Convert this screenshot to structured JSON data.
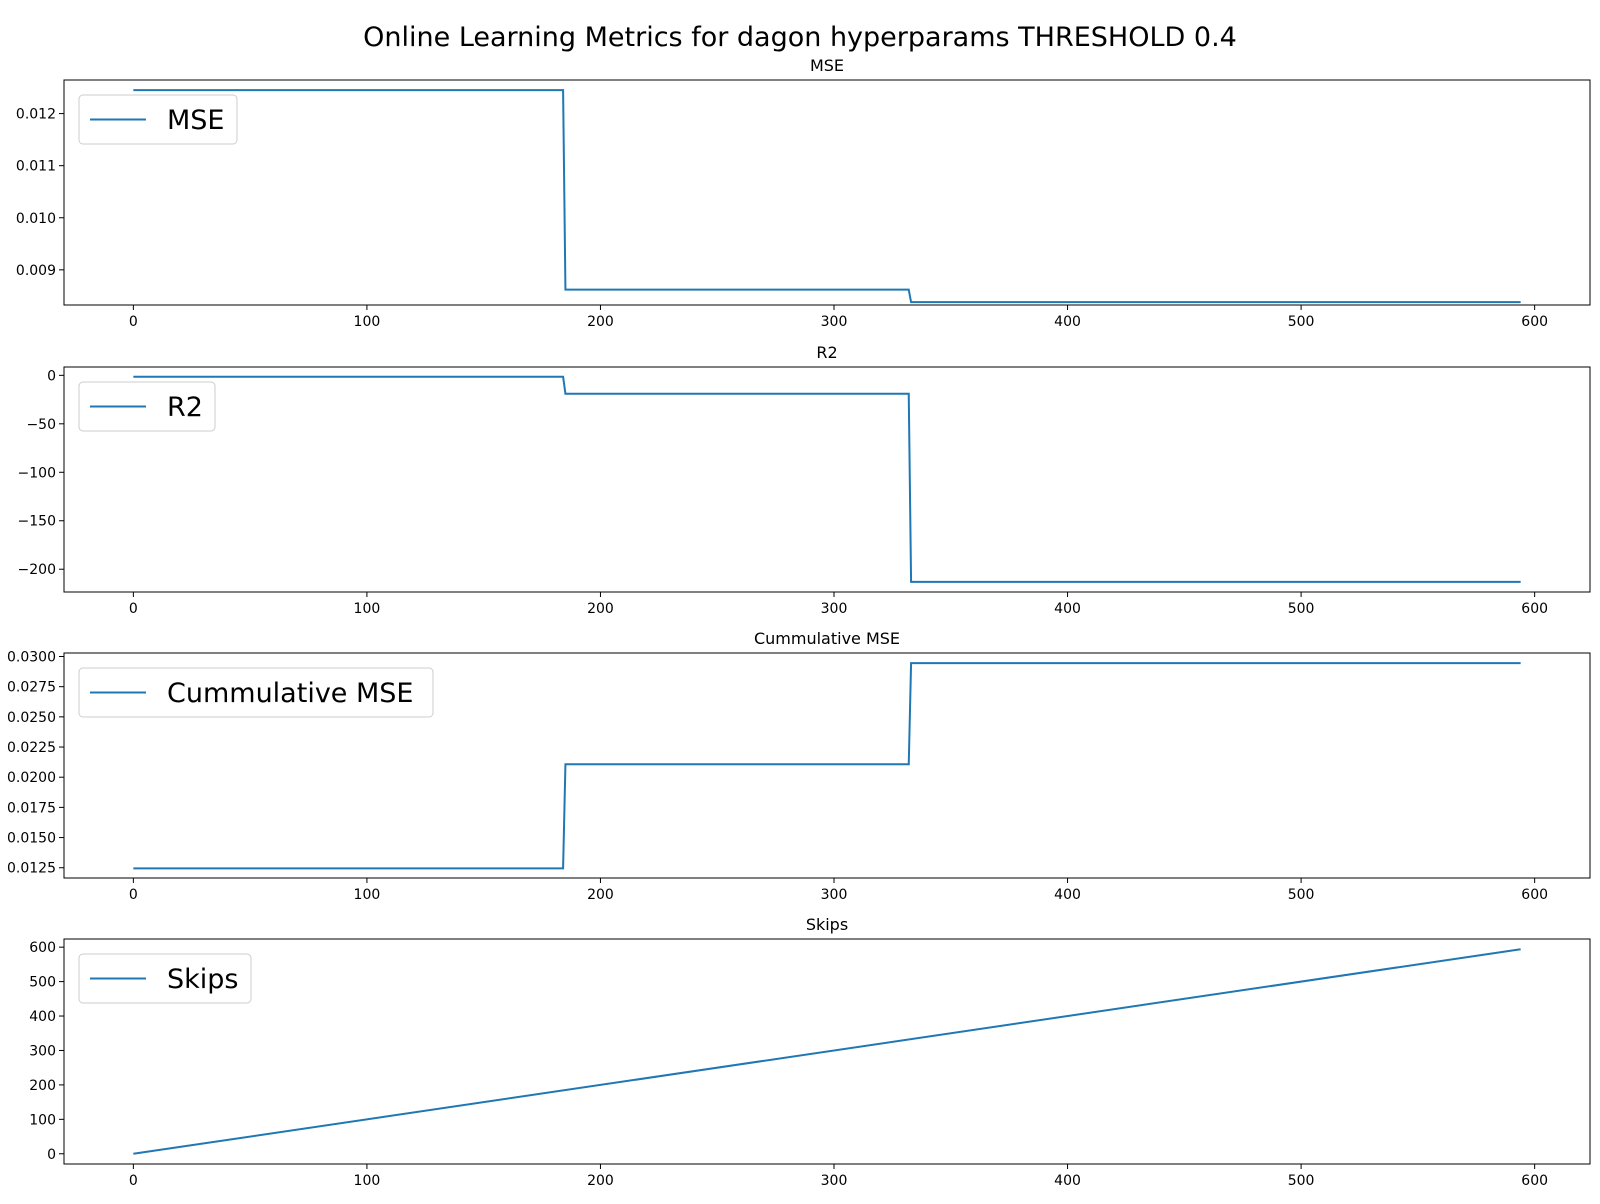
{
  "figure": {
    "suptitle": "Online Learning Metrics for dagon hyperparams THRESHOLD 0.4",
    "line_color": "#1f77b4"
  },
  "chart_data": [
    {
      "type": "line",
      "title": "MSE",
      "xlabel": "",
      "ylabel": "",
      "xlim": [
        -29.7,
        623.7
      ],
      "ylim": [
        0.008325,
        0.012645
      ],
      "xticks": [
        0,
        100,
        200,
        300,
        400,
        500,
        600
      ],
      "xtick_labels": [
        "0",
        "100",
        "200",
        "300",
        "400",
        "500",
        "600"
      ],
      "yticks": [
        0.009,
        0.01,
        0.011,
        0.012
      ],
      "ytick_labels": [
        "0.009",
        "0.010",
        "0.011",
        "0.012"
      ],
      "legend": "upper-left",
      "grid": false,
      "series": [
        {
          "name": "MSE",
          "x": [
            0,
            184,
            185,
            332,
            333,
            594
          ],
          "y": [
            0.01245,
            0.01245,
            0.00862,
            0.00862,
            0.00838,
            0.00838
          ]
        }
      ]
    },
    {
      "type": "line",
      "title": "R2",
      "xlabel": "",
      "ylabel": "",
      "xlim": [
        -29.7,
        623.7
      ],
      "ylim": [
        -223.5,
        8.6
      ],
      "xticks": [
        0,
        100,
        200,
        300,
        400,
        500,
        600
      ],
      "xtick_labels": [
        "0",
        "100",
        "200",
        "300",
        "400",
        "500",
        "600"
      ],
      "yticks": [
        0,
        -50,
        -100,
        -150,
        -200
      ],
      "ytick_labels": [
        "0",
        "−50",
        "−100",
        "−150",
        "−200"
      ],
      "legend": "upper-left",
      "grid": false,
      "series": [
        {
          "name": "R2",
          "x": [
            0,
            184,
            185,
            332,
            333,
            594
          ],
          "y": [
            -1.5,
            -1.5,
            -19,
            -19,
            -213,
            -213
          ]
        }
      ]
    },
    {
      "type": "line",
      "title": "Cummulative MSE",
      "xlabel": "",
      "ylabel": "",
      "xlim": [
        -29.7,
        623.7
      ],
      "ylim": [
        0.01165,
        0.03029
      ],
      "xticks": [
        0,
        100,
        200,
        300,
        400,
        500,
        600
      ],
      "xtick_labels": [
        "0",
        "100",
        "200",
        "300",
        "400",
        "500",
        "600"
      ],
      "yticks": [
        0.0125,
        0.015,
        0.0175,
        0.02,
        0.0225,
        0.025,
        0.0275,
        0.03
      ],
      "ytick_labels": [
        "0.0125",
        "0.0150",
        "0.0175",
        "0.0200",
        "0.0225",
        "0.0250",
        "0.0275",
        "0.0300"
      ],
      "legend": "upper-left",
      "grid": false,
      "series": [
        {
          "name": "Cummulative MSE",
          "x": [
            0,
            184,
            185,
            332,
            333,
            594
          ],
          "y": [
            0.01245,
            0.01245,
            0.02107,
            0.02107,
            0.02945,
            0.02945
          ]
        }
      ]
    },
    {
      "type": "line",
      "title": "Skips",
      "xlabel": "",
      "ylabel": "",
      "xlim": [
        -29.7,
        623.7
      ],
      "ylim": [
        -29.7,
        623.7
      ],
      "xticks": [
        0,
        100,
        200,
        300,
        400,
        500,
        600
      ],
      "xtick_labels": [
        "0",
        "100",
        "200",
        "300",
        "400",
        "500",
        "600"
      ],
      "yticks": [
        0,
        100,
        200,
        300,
        400,
        500,
        600
      ],
      "ytick_labels": [
        "0",
        "100",
        "200",
        "300",
        "400",
        "500",
        "600"
      ],
      "legend": "upper-left",
      "grid": false,
      "series": [
        {
          "name": "Skips",
          "x": [
            0,
            594
          ],
          "y": [
            0,
            594
          ]
        }
      ]
    }
  ]
}
